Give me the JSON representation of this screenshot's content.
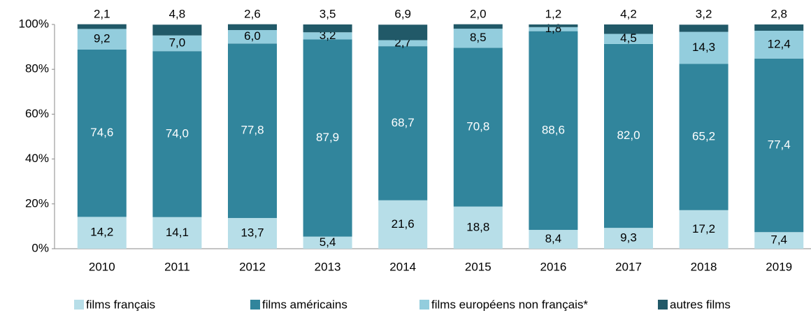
{
  "chart_data": {
    "type": "stacked_bar",
    "categories": [
      "2010",
      "2011",
      "2012",
      "2013",
      "2014",
      "2015",
      "2016",
      "2017",
      "2018",
      "2019"
    ],
    "series": [
      {
        "name": "films français",
        "color": "#b7dee8",
        "label_color": "#000000",
        "values": [
          14.2,
          14.1,
          13.7,
          5.4,
          21.6,
          18.8,
          8.4,
          9.3,
          17.2,
          7.4
        ],
        "value_labels": [
          "14,2",
          "14,1",
          "13,7",
          "5,4",
          "21,6",
          "18,8",
          "8,4",
          "9,3",
          "17,2",
          "7,4"
        ]
      },
      {
        "name": "films américains",
        "color": "#31859c",
        "label_color": "#ffffff",
        "values": [
          74.6,
          74.0,
          77.8,
          87.9,
          68.7,
          70.8,
          88.6,
          82.0,
          65.2,
          77.4
        ],
        "value_labels": [
          "74,6",
          "74,0",
          "77,8",
          "87,9",
          "68,7",
          "70,8",
          "88,6",
          "82,0",
          "65,2",
          "77,4"
        ]
      },
      {
        "name": "films européens non français*",
        "color": "#93cddd",
        "label_color": "#000000",
        "values": [
          9.2,
          7.0,
          6.0,
          3.2,
          2.7,
          8.5,
          1.8,
          4.5,
          14.3,
          12.4
        ],
        "value_labels": [
          "9,2",
          "7,0",
          "6,0",
          "3,2",
          "2,7",
          "8,5",
          "1,8",
          "4,5",
          "14,3",
          "12,4"
        ]
      },
      {
        "name": "autres films",
        "color": "#215968",
        "label_color": "#000000",
        "values": [
          2.1,
          4.8,
          2.6,
          3.5,
          6.9,
          2.0,
          1.2,
          4.2,
          3.2,
          2.8
        ],
        "value_labels": [
          "2,1",
          "4,8",
          "2,6",
          "3,5",
          "6,9",
          "2,0",
          "1,2",
          "4,2",
          "3,2",
          "2,8"
        ]
      }
    ],
    "ylim": [
      0,
      100
    ],
    "yticks": [
      {
        "value": 0,
        "label": "0%"
      },
      {
        "value": 20,
        "label": "20%"
      },
      {
        "value": 40,
        "label": "40%"
      },
      {
        "value": 60,
        "label": "60%"
      },
      {
        "value": 80,
        "label": "80%"
      },
      {
        "value": 100,
        "label": "100%"
      }
    ],
    "legend": "bottom"
  }
}
